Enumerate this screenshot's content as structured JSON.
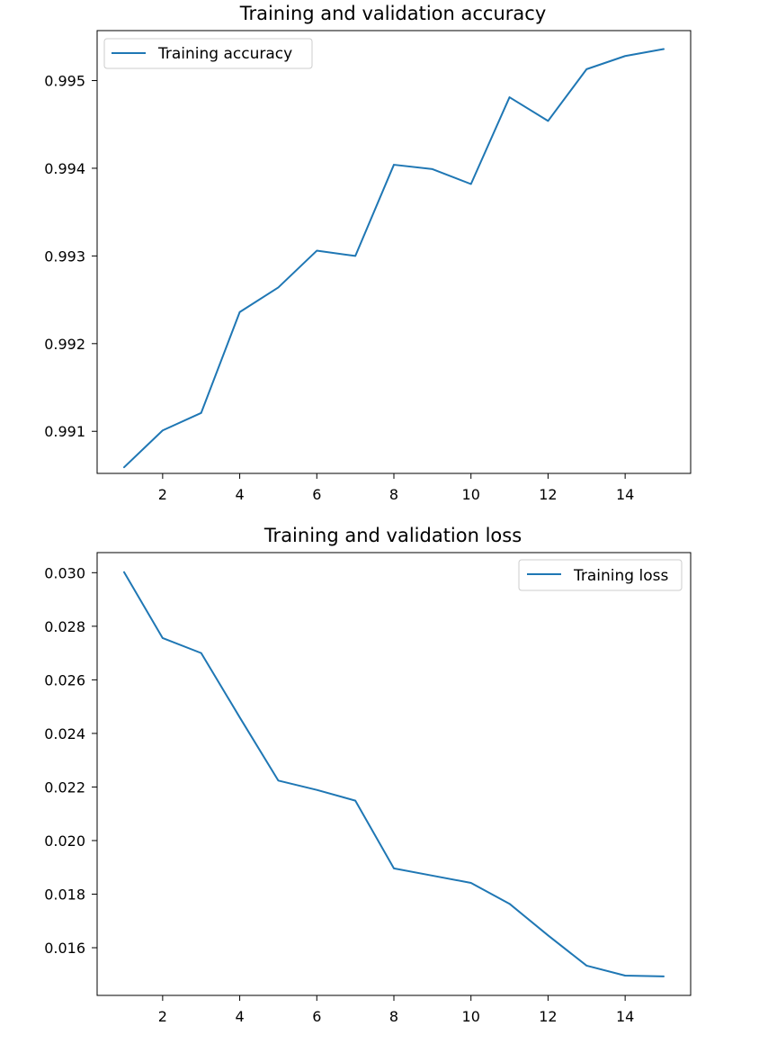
{
  "chart_data": [
    {
      "type": "line",
      "title": "Training and validation accuracy",
      "xlabel": "",
      "ylabel": "",
      "x": [
        1,
        2,
        3,
        4,
        5,
        6,
        7,
        8,
        9,
        10,
        11,
        12,
        13,
        14,
        15
      ],
      "series": [
        {
          "name": "Training accuracy",
          "color": "#1f77b4",
          "values": [
            0.99059,
            0.99101,
            0.99121,
            0.99236,
            0.99264,
            0.99306,
            0.993,
            0.99404,
            0.99399,
            0.99382,
            0.99481,
            0.99454,
            0.99513,
            0.99528,
            0.99536
          ]
        }
      ],
      "xlim": [
        0.3,
        15.7
      ],
      "ylim": [
        0.99052,
        0.99557
      ],
      "xticks": [
        2,
        4,
        6,
        8,
        10,
        12,
        14
      ],
      "xtick_labels": [
        "2",
        "4",
        "6",
        "8",
        "10",
        "12",
        "14"
      ],
      "yticks": [
        0.991,
        0.992,
        0.993,
        0.994,
        0.995
      ],
      "ytick_labels": [
        "0.991",
        "0.992",
        "0.993",
        "0.994",
        "0.995"
      ],
      "legend_position": "upper left",
      "grid": false
    },
    {
      "type": "line",
      "title": "Training  and validation loss",
      "xlabel": "",
      "ylabel": "",
      "x": [
        1,
        2,
        3,
        4,
        5,
        6,
        7,
        8,
        9,
        10,
        11,
        12,
        13,
        14,
        15
      ],
      "series": [
        {
          "name": "Training loss",
          "color": "#1f77b4",
          "values": [
            0.03002,
            0.02756,
            0.027,
            0.0246,
            0.02224,
            0.02189,
            0.02149,
            0.01896,
            0.01869,
            0.01842,
            0.01764,
            0.01646,
            0.01533,
            0.01496,
            0.01493
          ]
        }
      ],
      "xlim": [
        0.3,
        15.7
      ],
      "ylim": [
        0.01422,
        0.03075
      ],
      "xticks": [
        2,
        4,
        6,
        8,
        10,
        12,
        14
      ],
      "xtick_labels": [
        "2",
        "4",
        "6",
        "8",
        "10",
        "12",
        "14"
      ],
      "yticks": [
        0.016,
        0.018,
        0.02,
        0.022,
        0.024,
        0.026,
        0.028,
        0.03
      ],
      "ytick_labels": [
        "0.016",
        "0.018",
        "0.020",
        "0.022",
        "0.024",
        "0.026",
        "0.028",
        "0.030"
      ],
      "legend_position": "upper right",
      "grid": false
    }
  ]
}
